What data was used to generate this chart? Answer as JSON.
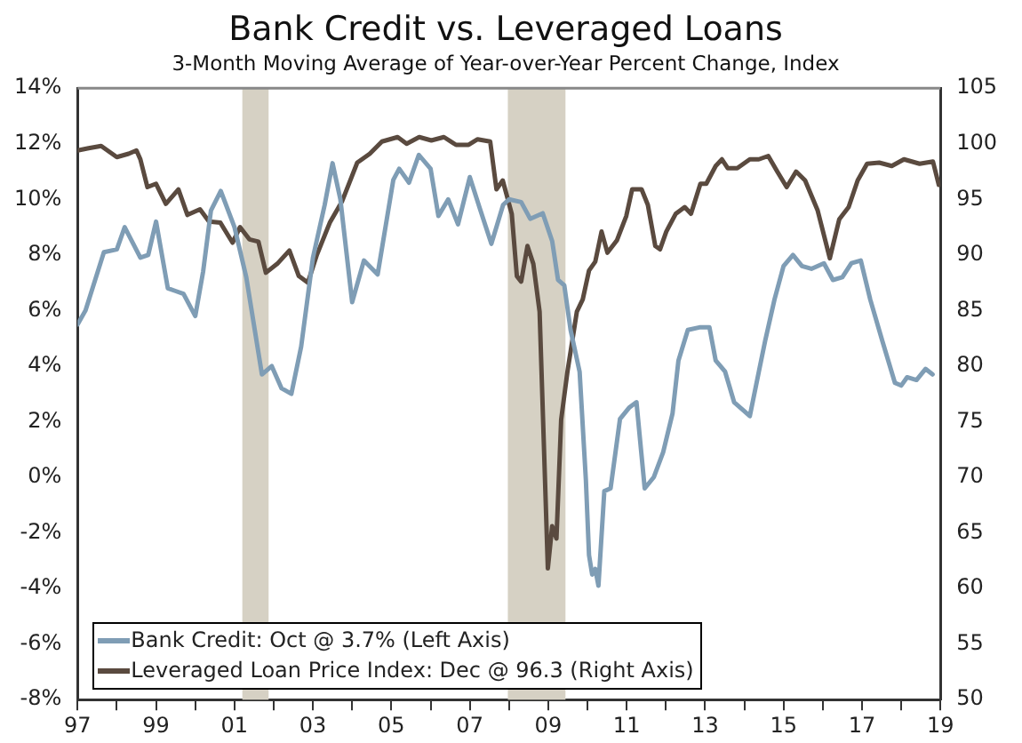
{
  "chart_data": {
    "type": "line",
    "title": "Bank Credit vs. Leveraged Loans",
    "subtitle": "3-Month Moving Average of Year-over-Year Percent Change, Index",
    "series": [
      {
        "name": "Bank Credit: Oct @ 3.7% (Left Axis)",
        "color": "#7f9db5",
        "axis": "y",
        "x": [
          1997.0,
          1997.2,
          1997.67,
          1998.0,
          1998.2,
          1998.6,
          1998.8,
          1999.0,
          1999.3,
          1999.5,
          1999.7,
          2000.0,
          2000.2,
          2000.4,
          2000.65,
          2001.0,
          2001.3,
          2001.7,
          2001.95,
          2002.2,
          2002.45,
          2002.7,
          2003.0,
          2003.3,
          2003.5,
          2003.7,
          2004.0,
          2004.3,
          2004.65,
          2005.05,
          2005.2,
          2005.45,
          2005.7,
          2006.0,
          2006.2,
          2006.45,
          2006.7,
          2007.0,
          2007.25,
          2007.55,
          2007.85,
          2008.0,
          2008.31,
          2008.54,
          2008.86,
          2009.1,
          2009.25,
          2009.41,
          2009.57,
          2009.8,
          2009.96,
          2010.04,
          2010.12,
          2010.2,
          2010.28,
          2010.43,
          2010.59,
          2010.83,
          2011.06,
          2011.25,
          2011.46,
          2011.69,
          2011.93,
          2012.17,
          2012.32,
          2012.56,
          2012.88,
          2013.11,
          2013.27,
          2013.51,
          2013.74,
          2013.98,
          2014.14,
          2014.37,
          2014.53,
          2014.77,
          2015.0,
          2015.24,
          2015.47,
          2015.71,
          2016.03,
          2016.26,
          2016.5,
          2016.73,
          2016.97,
          2017.21,
          2017.52,
          2017.84,
          2018.0,
          2018.15,
          2018.39,
          2018.62,
          2018.8
        ],
        "values": [
          5.5,
          6.0,
          8.1,
          8.2,
          9.0,
          7.9,
          8.0,
          9.2,
          6.8,
          6.7,
          6.6,
          5.8,
          7.4,
          9.6,
          10.3,
          9.0,
          7.2,
          3.7,
          4.0,
          3.2,
          3.0,
          4.7,
          7.9,
          9.8,
          11.3,
          10.0,
          6.3,
          7.8,
          7.3,
          10.7,
          11.1,
          10.6,
          11.6,
          11.1,
          9.4,
          10.0,
          9.1,
          10.8,
          9.7,
          8.4,
          9.8,
          10.0,
          9.9,
          9.3,
          9.5,
          8.5,
          7.1,
          6.9,
          5.3,
          3.8,
          -0.1,
          -2.8,
          -3.5,
          -3.3,
          -3.9,
          -0.5,
          -0.4,
          2.1,
          2.5,
          2.7,
          -0.4,
          0.0,
          0.9,
          2.3,
          4.2,
          5.3,
          5.4,
          5.4,
          4.2,
          3.8,
          2.7,
          2.4,
          2.2,
          3.8,
          4.9,
          6.4,
          7.6,
          8.0,
          7.6,
          7.5,
          7.7,
          7.1,
          7.2,
          7.7,
          7.8,
          6.4,
          4.9,
          3.4,
          3.3,
          3.6,
          3.5,
          3.9,
          3.7
        ]
      },
      {
        "name": "Leveraged Loan Price Index: Dec @ 96.3 (Right Axis)",
        "color": "#5a4a3f",
        "axis": "y2",
        "x": [
          1997.0,
          1997.28,
          1997.6,
          1998.0,
          1998.3,
          1998.5,
          1998.6,
          1998.78,
          1999.0,
          1999.25,
          1999.57,
          1999.8,
          2000.12,
          2000.35,
          2000.64,
          2000.95,
          2001.14,
          2001.38,
          2001.61,
          2001.8,
          2002.09,
          2002.4,
          2002.64,
          2002.87,
          2003.1,
          2003.43,
          2003.74,
          2004.13,
          2004.45,
          2004.76,
          2005.16,
          2005.39,
          2005.71,
          2006.02,
          2006.34,
          2006.65,
          2006.97,
          2007.2,
          2007.52,
          2007.68,
          2007.84,
          2008.07,
          2008.2,
          2008.31,
          2008.47,
          2008.62,
          2008.78,
          2008.99,
          2009.1,
          2009.21,
          2009.33,
          2009.49,
          2009.73,
          2009.88,
          2010.04,
          2010.2,
          2010.36,
          2010.51,
          2010.75,
          2010.99,
          2011.14,
          2011.38,
          2011.54,
          2011.73,
          2011.85,
          2012.01,
          2012.25,
          2012.48,
          2012.64,
          2012.88,
          2013.03,
          2013.27,
          2013.43,
          2013.58,
          2013.82,
          2014.14,
          2014.37,
          2014.61,
          2014.84,
          2015.08,
          2015.32,
          2015.55,
          2015.87,
          2016.18,
          2016.42,
          2016.66,
          2016.89,
          2017.13,
          2017.44,
          2017.76,
          2018.07,
          2018.47,
          2018.81,
          2018.96
        ],
        "values": [
          99.4,
          99.6,
          99.8,
          98.8,
          99.1,
          99.4,
          98.6,
          96.1,
          96.4,
          94.6,
          95.9,
          93.6,
          94.1,
          93.0,
          92.9,
          91.1,
          92.5,
          91.4,
          91.2,
          88.4,
          89.2,
          90.4,
          88.1,
          87.5,
          90.0,
          92.9,
          94.8,
          98.3,
          99.1,
          100.2,
          100.6,
          100.0,
          100.6,
          100.3,
          100.6,
          99.9,
          99.9,
          100.4,
          100.2,
          95.9,
          96.7,
          93.7,
          88.1,
          87.6,
          90.8,
          89.2,
          84.9,
          61.8,
          65.6,
          64.5,
          75.2,
          79.5,
          84.9,
          86.0,
          88.6,
          89.4,
          92.1,
          90.2,
          91.3,
          93.5,
          95.9,
          95.9,
          94.5,
          90.8,
          90.5,
          92.1,
          93.7,
          94.3,
          93.7,
          96.4,
          96.4,
          98.0,
          98.6,
          97.8,
          97.8,
          98.6,
          98.6,
          98.9,
          97.5,
          96.1,
          97.5,
          96.7,
          94.0,
          89.7,
          93.2,
          94.3,
          96.7,
          98.2,
          98.3,
          98.0,
          98.6,
          98.2,
          98.4,
          96.3
        ]
      }
    ],
    "xlim": [
      1997,
      2019
    ],
    "xticks": [
      {
        "value": 1997,
        "label": "97"
      },
      {
        "value": 1998,
        "label": null
      },
      {
        "value": 1999,
        "label": "99"
      },
      {
        "value": 2000,
        "label": null
      },
      {
        "value": 2001,
        "label": "01"
      },
      {
        "value": 2002,
        "label": null
      },
      {
        "value": 2003,
        "label": "03"
      },
      {
        "value": 2004,
        "label": null
      },
      {
        "value": 2005,
        "label": "05"
      },
      {
        "value": 2006,
        "label": null
      },
      {
        "value": 2007,
        "label": "07"
      },
      {
        "value": 2008,
        "label": null
      },
      {
        "value": 2009,
        "label": "09"
      },
      {
        "value": 2010,
        "label": null
      },
      {
        "value": 2011,
        "label": "11"
      },
      {
        "value": 2012,
        "label": null
      },
      {
        "value": 2013,
        "label": "13"
      },
      {
        "value": 2014,
        "label": null
      },
      {
        "value": 2015,
        "label": "15"
      },
      {
        "value": 2016,
        "label": null
      },
      {
        "value": 2017,
        "label": "17"
      },
      {
        "value": 2018,
        "label": null
      },
      {
        "value": 2019,
        "label": "19"
      }
    ],
    "ylim": [
      -8,
      14
    ],
    "yticks": [
      {
        "value": -8,
        "label": "-8%"
      },
      {
        "value": -6,
        "label": "-6%"
      },
      {
        "value": -4,
        "label": "-4%"
      },
      {
        "value": -2,
        "label": "-2%"
      },
      {
        "value": 0,
        "label": "0%"
      },
      {
        "value": 2,
        "label": "2%"
      },
      {
        "value": 4,
        "label": "4%"
      },
      {
        "value": 6,
        "label": "6%"
      },
      {
        "value": 8,
        "label": "8%"
      },
      {
        "value": 10,
        "label": "10%"
      },
      {
        "value": 12,
        "label": "12%"
      },
      {
        "value": 14,
        "label": "14%"
      }
    ],
    "y2lim": [
      50,
      105
    ],
    "y2ticks": [
      50,
      55,
      60,
      65,
      70,
      75,
      80,
      85,
      90,
      95,
      100,
      105
    ],
    "bands": [
      {
        "axis": "x",
        "from": 2001.2,
        "to": 2001.87,
        "color": "#d6d1c4"
      },
      {
        "axis": "x",
        "from": 2007.97,
        "to": 2009.44,
        "color": "#d6d1c4"
      }
    ],
    "grid": false,
    "legend": "bottom left",
    "marker": "none",
    "line_style": "solid"
  }
}
